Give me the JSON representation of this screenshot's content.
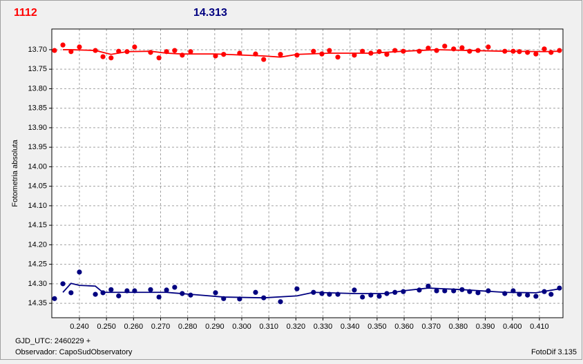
{
  "chart_data": {
    "type": "scatter",
    "y_axis_label": "Fotometria absoluta",
    "footer_left": [
      "GJD_UTC: 2460229 +",
      "Observador: CapoSudObservatory"
    ],
    "footer_right": "FotoDif 3.135",
    "xlim": [
      0.2298,
      0.4187
    ],
    "ylim": [
      14.387,
      13.647
    ],
    "grid": true,
    "xticks": [
      {
        "value": 0.24,
        "label": "0.240"
      },
      {
        "value": 0.25,
        "label": "0.250"
      },
      {
        "value": 0.26,
        "label": "0.260"
      },
      {
        "value": 0.27,
        "label": "0.270"
      },
      {
        "value": 0.28,
        "label": "0.280"
      },
      {
        "value": 0.29,
        "label": "0.290"
      },
      {
        "value": 0.3,
        "label": "0.300"
      },
      {
        "value": 0.31,
        "label": "0.310"
      },
      {
        "value": 0.32,
        "label": "0.320"
      },
      {
        "value": 0.33,
        "label": "0.330"
      },
      {
        "value": 0.34,
        "label": "0.340"
      },
      {
        "value": 0.35,
        "label": "0.350"
      },
      {
        "value": 0.36,
        "label": "0.360"
      },
      {
        "value": 0.37,
        "label": "0.370"
      },
      {
        "value": 0.38,
        "label": "0.380"
      },
      {
        "value": 0.39,
        "label": "0.390"
      },
      {
        "value": 0.4,
        "label": "0.400"
      },
      {
        "value": 0.41,
        "label": "0.410"
      }
    ],
    "yticks": [
      {
        "value": 13.7,
        "label": "13.70"
      },
      13.75,
      {
        "value": 13.8,
        "label": "13.80"
      },
      13.85,
      {
        "value": 13.9,
        "label": "13.90"
      },
      13.95,
      {
        "value": 14.0,
        "label": "14.00"
      },
      14.05,
      {
        "value": 14.1,
        "label": "14.10"
      },
      14.15,
      {
        "value": 14.2,
        "label": "14.20"
      },
      14.25,
      {
        "value": 14.3,
        "label": "14.30"
      },
      14.35
    ],
    "x": [
      0.2308,
      0.2339,
      0.2369,
      0.24,
      0.2459,
      0.2487,
      0.2517,
      0.2545,
      0.2576,
      0.2604,
      0.2663,
      0.2694,
      0.2722,
      0.2752,
      0.278,
      0.2811,
      0.2903,
      0.2933,
      0.2992,
      0.3051,
      0.3081,
      0.3143,
      0.3204,
      0.3265,
      0.3296,
      0.3324,
      0.3355,
      0.3416,
      0.3446,
      0.3477,
      0.3508,
      0.3536,
      0.3566,
      0.3597,
      0.3656,
      0.3689,
      0.372,
      0.375,
      0.3783,
      0.3814,
      0.3842,
      0.3873,
      0.3911,
      0.3972,
      0.4003,
      0.4026,
      0.4056,
      0.4087,
      0.4118,
      0.4143,
      0.4174
    ],
    "series": [
      {
        "label": "1112",
        "color": "#ff0000",
        "values": [
          13.702,
          13.688,
          13.705,
          13.693,
          13.702,
          13.718,
          13.721,
          13.704,
          13.705,
          13.693,
          13.707,
          13.721,
          13.705,
          13.702,
          13.714,
          13.705,
          13.716,
          13.712,
          13.709,
          13.711,
          13.725,
          13.712,
          13.714,
          13.704,
          13.711,
          13.702,
          13.719,
          13.714,
          13.704,
          13.709,
          13.705,
          13.712,
          13.702,
          13.704,
          13.704,
          13.696,
          13.702,
          13.691,
          13.698,
          13.695,
          13.704,
          13.702,
          13.693,
          13.704,
          13.704,
          13.705,
          13.707,
          13.711,
          13.698,
          13.707,
          13.702
        ],
        "line_x": [
          0.2339,
          0.2369,
          0.2459,
          0.2517,
          0.2576,
          0.2663,
          0.2722,
          0.278,
          0.2903,
          0.3081,
          0.3143,
          0.3204,
          0.3324,
          0.3477,
          0.3597,
          0.372,
          0.3842,
          0.3972,
          0.4118,
          0.4174
        ],
        "line_values": [
          13.7,
          13.7,
          13.702,
          13.712,
          13.705,
          13.704,
          13.709,
          13.711,
          13.711,
          13.716,
          13.719,
          13.712,
          13.709,
          13.709,
          13.704,
          13.7,
          13.702,
          13.704,
          13.705,
          13.704
        ]
      },
      {
        "label": "14.313",
        "color": "#000080",
        "values": [
          14.338,
          14.3,
          14.323,
          14.27,
          14.327,
          14.323,
          14.315,
          14.331,
          14.318,
          14.318,
          14.315,
          14.334,
          14.316,
          14.309,
          14.325,
          14.329,
          14.323,
          14.338,
          14.339,
          14.322,
          14.336,
          14.346,
          14.313,
          14.322,
          14.325,
          14.327,
          14.327,
          14.316,
          14.334,
          14.329,
          14.332,
          14.325,
          14.322,
          14.32,
          14.316,
          14.306,
          14.318,
          14.318,
          14.318,
          14.315,
          14.32,
          14.323,
          14.318,
          14.325,
          14.318,
          14.327,
          14.329,
          14.332,
          14.32,
          14.327,
          14.311
        ],
        "line_x": [
          0.2339,
          0.2369,
          0.24,
          0.2459,
          0.2487,
          0.2604,
          0.2722,
          0.2811,
          0.2933,
          0.3081,
          0.3204,
          0.3265,
          0.3416,
          0.3536,
          0.3597,
          0.3689,
          0.3814,
          0.3972,
          0.4087,
          0.4174
        ],
        "line_values": [
          14.322,
          14.299,
          14.304,
          14.306,
          14.322,
          14.322,
          14.322,
          14.327,
          14.334,
          14.336,
          14.331,
          14.322,
          14.325,
          14.325,
          14.318,
          14.311,
          14.315,
          14.322,
          14.323,
          14.313
        ]
      }
    ]
  }
}
